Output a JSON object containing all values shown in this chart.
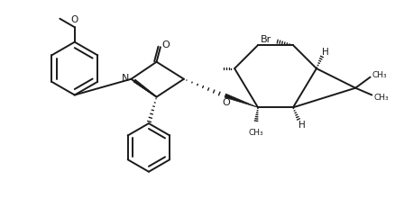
{
  "bg_color": "#ffffff",
  "line_color": "#1a1a1a",
  "lw": 1.4,
  "fig_width": 4.38,
  "fig_height": 2.32,
  "dpi": 100,
  "xlim": [
    0,
    10
  ],
  "ylim": [
    0,
    5.3
  ]
}
